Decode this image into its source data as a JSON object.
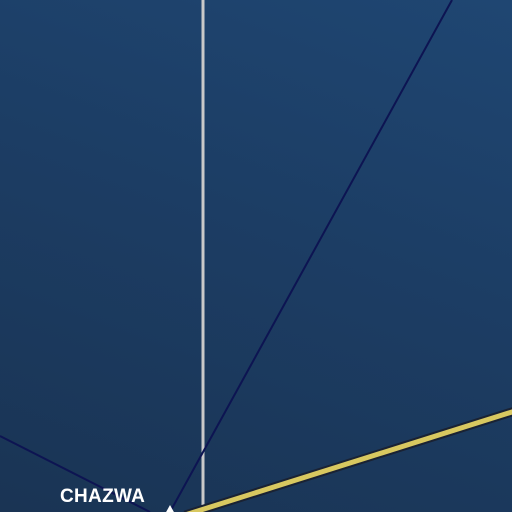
{
  "map": {
    "background_color": "#1c3d64",
    "thin_route_color": "#0d1452",
    "vertical_line_color": "#c9c9c9",
    "highlight_route_color": "#d8c860",
    "highlight_route_casing_color": "#1a2233",
    "marker_color": "#ffffff",
    "marker_icon": "triangle-marker-icon"
  },
  "labels": {
    "place": "CHAZWA"
  }
}
